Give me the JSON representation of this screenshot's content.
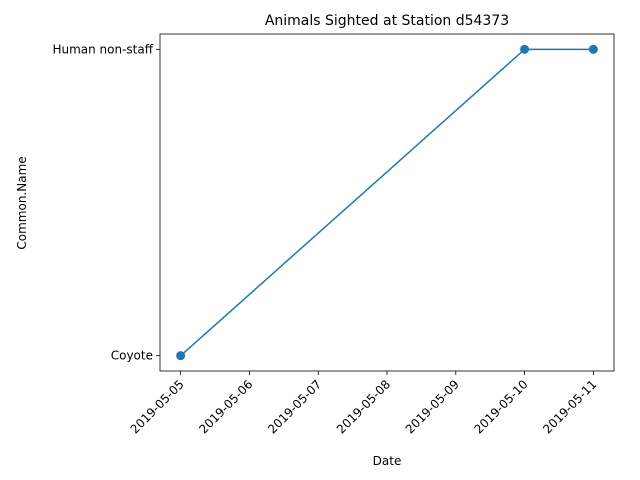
{
  "chart_data": {
    "type": "line",
    "title": "Animals Sighted at Station d54373",
    "xlabel": "Date",
    "ylabel": "Common.Name",
    "x_ticks": [
      "2019-05-05",
      "2019-05-06",
      "2019-05-07",
      "2019-05-08",
      "2019-05-09",
      "2019-05-10",
      "2019-05-11"
    ],
    "y_categories": [
      "Coyote",
      "Human non-staff"
    ],
    "series": [
      {
        "color": "#1f77b4",
        "marker": "circle",
        "points": [
          {
            "x": "2019-05-05",
            "y": "Coyote"
          },
          {
            "x": "2019-05-10",
            "y": "Human non-staff"
          },
          {
            "x": "2019-05-11",
            "y": "Human non-staff"
          }
        ]
      }
    ],
    "grid": false,
    "legend": "none"
  }
}
